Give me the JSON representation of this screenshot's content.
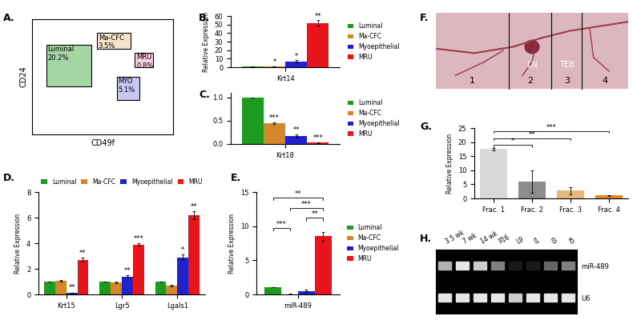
{
  "chart_data": [
    {
      "type": "gates",
      "panel_label": "A.",
      "x_label": "CD49f",
      "y_label": "CD24",
      "tick_labels": false,
      "gates": [
        {
          "name": "Luminal",
          "value": 20.2,
          "value_label": "20.2%",
          "color": "#1e9a1e"
        },
        {
          "name": "Ma-CFC",
          "value": 3.5,
          "value_label": "3.5%",
          "color": "#d1872a"
        },
        {
          "name": "MRU",
          "value": 0.8,
          "value_label": "0.8%",
          "color": "#e8147b"
        },
        {
          "name": "MYO",
          "value": 5.1,
          "value_label": "5.1%",
          "color": "#2222cc"
        }
      ]
    },
    {
      "type": "bar",
      "panel_label": "B.",
      "y_label": "Relative Expression",
      "categories": [
        "Krt14"
      ],
      "series": [
        {
          "name": "Luminal",
          "color": "#1e9a1e",
          "values": [
            1
          ],
          "errors": [
            0
          ],
          "significance": [
            null
          ]
        },
        {
          "name": "Ma-CFC",
          "color": "#d1872a",
          "values": [
            1.2
          ],
          "errors": [
            0.1
          ],
          "significance": [
            "*"
          ]
        },
        {
          "name": "Myoepithelial",
          "color": "#2222cc",
          "values": [
            7
          ],
          "errors": [
            1.2
          ],
          "significance": [
            "*"
          ]
        },
        {
          "name": "MRU",
          "color": "#e8141b",
          "values": [
            52
          ],
          "errors": [
            3
          ],
          "significance": [
            "**"
          ]
        }
      ],
      "ylim": [
        0,
        60
      ],
      "yticks": [
        0,
        10,
        20,
        30,
        40,
        50,
        60
      ],
      "legend": "right"
    },
    {
      "type": "bar",
      "panel_label": "C.",
      "categories": [
        "Krt18"
      ],
      "series": [
        {
          "name": "Luminal",
          "color": "#1e9a1e",
          "values": [
            1.0
          ],
          "errors": [
            0
          ],
          "significance": [
            null
          ]
        },
        {
          "name": "Ma-CFC",
          "color": "#d1872a",
          "values": [
            0.45
          ],
          "errors": [
            0.02
          ],
          "significance": [
            "***"
          ]
        },
        {
          "name": "Myoepithelial",
          "color": "#2222cc",
          "values": [
            0.17
          ],
          "errors": [
            0.04
          ],
          "significance": [
            "**"
          ]
        },
        {
          "name": "MRU",
          "color": "#e8141b",
          "values": [
            0.03
          ],
          "errors": [
            0.01
          ],
          "significance": [
            "***"
          ]
        }
      ],
      "ylim": [
        0,
        1.1
      ],
      "yticks": [
        {
          "value": 0,
          "label": "0.0"
        },
        {
          "value": 0.5,
          "label": "0.5"
        },
        {
          "value": 1,
          "label": "1.0"
        }
      ],
      "legend": "right"
    },
    {
      "type": "bar",
      "panel_label": "D.",
      "y_label": "Relative Expression",
      "categories": [
        "Krt15",
        "Lgr5",
        "Lgals1"
      ],
      "series": [
        {
          "name": "Luminal",
          "color": "#1e9a1e",
          "values": [
            1,
            1,
            1
          ],
          "errors": [
            0,
            0,
            0
          ],
          "significance": [
            null,
            null,
            null
          ]
        },
        {
          "name": "Ma-CFC",
          "color": "#d1872a",
          "values": [
            1.05,
            0.95,
            0.7
          ],
          "errors": [
            0.05,
            0.05,
            0.05
          ],
          "significance": [
            null,
            null,
            null
          ]
        },
        {
          "name": "Myoepithelial",
          "color": "#2222cc",
          "values": [
            0.1,
            1.4,
            2.9
          ],
          "errors": [
            0.05,
            0.1,
            0.2
          ],
          "significance": [
            "**",
            "**",
            "*"
          ]
        },
        {
          "name": "MRU",
          "color": "#e8141b",
          "values": [
            2.7,
            3.9,
            6.2
          ],
          "errors": [
            0.15,
            0.1,
            0.3
          ],
          "significance": [
            "**",
            "***",
            "**"
          ]
        }
      ],
      "ylim": [
        0,
        8
      ],
      "yticks": [
        0,
        2,
        4,
        6,
        8
      ],
      "legend": "top"
    },
    {
      "type": "bar",
      "panel_label": "E.",
      "y_label": "Relative Expression",
      "categories": [
        "miR-489"
      ],
      "series": [
        {
          "name": "Luminal",
          "color": "#1e9a1e",
          "values": [
            1.05
          ],
          "errors": [
            0.05
          ]
        },
        {
          "name": "Ma-CFC",
          "color": "#d1872a",
          "values": [
            0.05
          ],
          "errors": [
            0.02
          ]
        },
        {
          "name": "Myoepithelial",
          "color": "#2222cc",
          "values": [
            0.5
          ],
          "errors": [
            0.2
          ]
        },
        {
          "name": "MRU",
          "color": "#e8141b",
          "values": [
            8.5
          ],
          "errors": [
            0.6
          ]
        }
      ],
      "comparisons": [
        {
          "bars": [
            0,
            1
          ],
          "label": "***"
        },
        {
          "bars": [
            2,
            3
          ],
          "label": "**"
        },
        {
          "bars": [
            1,
            3
          ],
          "label": "***"
        },
        {
          "bars": [
            0,
            3
          ],
          "label": "**"
        }
      ],
      "ylim": [
        0,
        15
      ],
      "yticks": [
        0,
        5,
        10,
        15
      ],
      "legend": "right"
    },
    {
      "type": "image",
      "panel_label": "F.",
      "fractions": [
        "1",
        "2",
        "3",
        "4"
      ],
      "labels": [
        "LN",
        "TEB"
      ]
    },
    {
      "type": "bar",
      "panel_label": "G.",
      "y_label": "Relative Expression",
      "categories": [
        "Frac. 1",
        "Frac. 2",
        "Frac. 3",
        "Frac. 4"
      ],
      "values": [
        17.5,
        6,
        2.7,
        1
      ],
      "errors": [
        0.4,
        4,
        1.2,
        0.1
      ],
      "colors": [
        "#d9d9d9",
        "#8c8c8c",
        "#e8b97c",
        "#e8862a"
      ],
      "comparisons": [
        {
          "bars": [
            0,
            1
          ],
          "label": "*"
        },
        {
          "bars": [
            0,
            2
          ],
          "label": "**"
        },
        {
          "bars": [
            0,
            3
          ],
          "label": "***"
        }
      ],
      "ylim": [
        0,
        25
      ],
      "yticks": [
        0,
        5,
        10,
        15,
        20,
        25
      ]
    },
    {
      "type": "gel",
      "panel_label": "H.",
      "categories": [
        "3.5 wk",
        "7 wk",
        "14 wk",
        "P16",
        "L9",
        "I1",
        "I3",
        "I5"
      ],
      "rows": [
        {
          "name": "miR-489",
          "band_intensity": [
            0.7,
            0.9,
            0.8,
            0.5,
            0.1,
            0.1,
            0.4,
            0.5
          ]
        },
        {
          "name": "U6",
          "band_intensity": [
            0.9,
            0.9,
            0.9,
            0.9,
            0.8,
            0.9,
            0.9,
            0.9
          ]
        }
      ]
    }
  ]
}
